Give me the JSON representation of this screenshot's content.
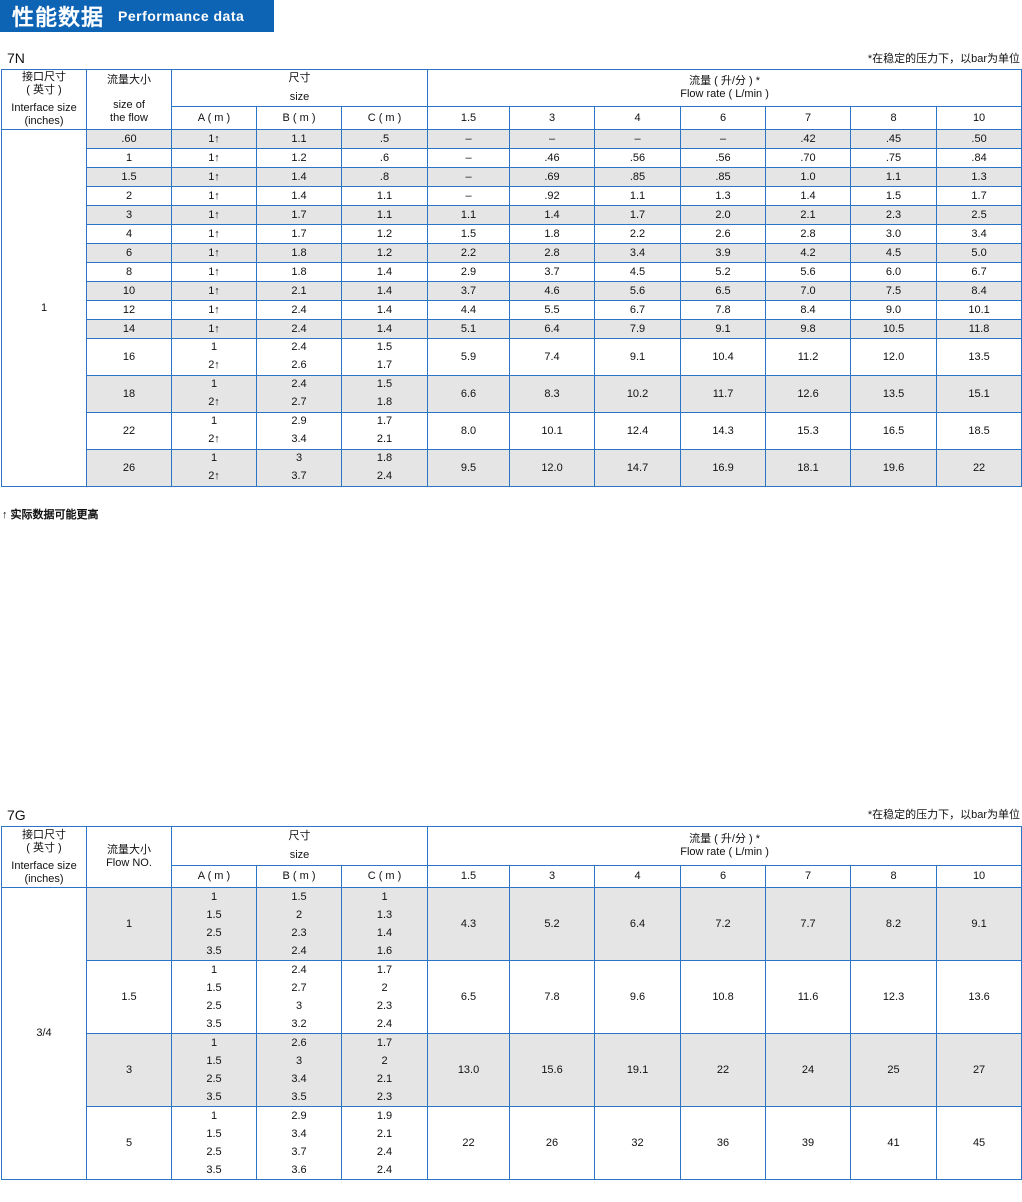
{
  "banner": {
    "title_zh": "性能数据",
    "title_en": "Performance data"
  },
  "colors": {
    "accent": "#0d64b4",
    "border": "#2c75c6",
    "stripe": "#e5e5e5"
  },
  "pressures": [
    "1.5",
    "3",
    "4",
    "6",
    "7",
    "8",
    "10"
  ],
  "t7n": {
    "model": "7N",
    "note": "*在稳定的压力下，以bar为单位",
    "headers": {
      "interface_zh": "接口尺寸",
      "interface_zh2": "( 英寸 )",
      "interface_en": "Interface size",
      "interface_en2": "(inches)",
      "flow_zh": "流量大小",
      "flow_en": "size of",
      "flow_en2": "the flow",
      "size_zh": "尺寸",
      "size_en": "size",
      "rate_zh": "流量 ( 升/分 ) *",
      "rate_en": "Flow rate ( L/min )",
      "a": "A ( m )",
      "b": "B ( m )",
      "c": "C ( m )"
    },
    "interface": "1",
    "rows": [
      {
        "flow": ".60",
        "a": [
          "1↑"
        ],
        "b": [
          "1.1"
        ],
        "c": [
          ".5"
        ],
        "rates": [
          "–",
          "–",
          "–",
          "–",
          ".42",
          ".45",
          ".50"
        ]
      },
      {
        "flow": "1",
        "a": [
          "1↑"
        ],
        "b": [
          "1.2"
        ],
        "c": [
          ".6"
        ],
        "rates": [
          "–",
          ".46",
          ".56",
          ".56",
          ".70",
          ".75",
          ".84"
        ]
      },
      {
        "flow": "1.5",
        "a": [
          "1↑"
        ],
        "b": [
          "1.4"
        ],
        "c": [
          ".8"
        ],
        "rates": [
          "–",
          ".69",
          ".85",
          ".85",
          "1.0",
          "1.1",
          "1.3"
        ]
      },
      {
        "flow": "2",
        "a": [
          "1↑"
        ],
        "b": [
          "1.4"
        ],
        "c": [
          "1.1"
        ],
        "rates": [
          "–",
          ".92",
          "1.1",
          "1.3",
          "1.4",
          "1.5",
          "1.7"
        ]
      },
      {
        "flow": "3",
        "a": [
          "1↑"
        ],
        "b": [
          "1.7"
        ],
        "c": [
          "1.1"
        ],
        "rates": [
          "1.1",
          "1.4",
          "1.7",
          "2.0",
          "2.1",
          "2.3",
          "2.5"
        ]
      },
      {
        "flow": "4",
        "a": [
          "1↑"
        ],
        "b": [
          "1.7"
        ],
        "c": [
          "1.2"
        ],
        "rates": [
          "1.5",
          "1.8",
          "2.2",
          "2.6",
          "2.8",
          "3.0",
          "3.4"
        ]
      },
      {
        "flow": "6",
        "a": [
          "1↑"
        ],
        "b": [
          "1.8"
        ],
        "c": [
          "1.2"
        ],
        "rates": [
          "2.2",
          "2.8",
          "3.4",
          "3.9",
          "4.2",
          "4.5",
          "5.0"
        ]
      },
      {
        "flow": "8",
        "a": [
          "1↑"
        ],
        "b": [
          "1.8"
        ],
        "c": [
          "1.4"
        ],
        "rates": [
          "2.9",
          "3.7",
          "4.5",
          "5.2",
          "5.6",
          "6.0",
          "6.7"
        ]
      },
      {
        "flow": "10",
        "a": [
          "1↑"
        ],
        "b": [
          "2.1"
        ],
        "c": [
          "1.4"
        ],
        "rates": [
          "3.7",
          "4.6",
          "5.6",
          "6.5",
          "7.0",
          "7.5",
          "8.4"
        ]
      },
      {
        "flow": "12",
        "a": [
          "1↑"
        ],
        "b": [
          "2.4"
        ],
        "c": [
          "1.4"
        ],
        "rates": [
          "4.4",
          "5.5",
          "6.7",
          "7.8",
          "8.4",
          "9.0",
          "10.1"
        ]
      },
      {
        "flow": "14",
        "a": [
          "1↑"
        ],
        "b": [
          "2.4"
        ],
        "c": [
          "1.4"
        ],
        "rates": [
          "5.1",
          "6.4",
          "7.9",
          "9.1",
          "9.8",
          "10.5",
          "11.8"
        ]
      },
      {
        "flow": "16",
        "a": [
          "1",
          "2↑"
        ],
        "b": [
          "2.4",
          "2.6"
        ],
        "c": [
          "1.5",
          "1.7"
        ],
        "rates": [
          "5.9",
          "7.4",
          "9.1",
          "10.4",
          "11.2",
          "12.0",
          "13.5"
        ]
      },
      {
        "flow": "18",
        "a": [
          "1",
          "2↑"
        ],
        "b": [
          "2.4",
          "2.7"
        ],
        "c": [
          "1.5",
          "1.8"
        ],
        "rates": [
          "6.6",
          "8.3",
          "10.2",
          "11.7",
          "12.6",
          "13.5",
          "15.1"
        ]
      },
      {
        "flow": "22",
        "a": [
          "1",
          "2↑"
        ],
        "b": [
          "2.9",
          "3.4"
        ],
        "c": [
          "1.7",
          "2.1"
        ],
        "rates": [
          "8.0",
          "10.1",
          "12.4",
          "14.3",
          "15.3",
          "16.5",
          "18.5"
        ]
      },
      {
        "flow": "26",
        "a": [
          "1",
          "2↑"
        ],
        "b": [
          "3",
          "3.7"
        ],
        "c": [
          "1.8",
          "2.4"
        ],
        "rates": [
          "9.5",
          "12.0",
          "14.7",
          "16.9",
          "18.1",
          "19.6",
          "22"
        ]
      }
    ],
    "footnote": "↑ 实际数据可能更高"
  },
  "t7g": {
    "model": "7G",
    "note": "*在稳定的压力下，以bar为单位",
    "headers": {
      "interface_zh": "接口尺寸",
      "interface_zh2": "( 英寸 )",
      "interface_en": "Interface size",
      "interface_en2": "(inches)",
      "flow_zh": "流量大小",
      "flow_en": "Flow NO.",
      "flow_en2": "",
      "size_zh": "尺寸",
      "size_en": "size",
      "rate_zh": "流量 ( 升/分 ) *",
      "rate_en": "Flow rate ( L/min )",
      "a": "A ( m )",
      "b": "B ( m )",
      "c": "C ( m )"
    },
    "interface": "3/4",
    "rows": [
      {
        "flow": "1",
        "a": [
          "1",
          "1.5",
          "2.5",
          "3.5"
        ],
        "b": [
          "1.5",
          "2",
          "2.3",
          "2.4"
        ],
        "c": [
          "1",
          "1.3",
          "1.4",
          "1.6"
        ],
        "rates": [
          "4.3",
          "5.2",
          "6.4",
          "7.2",
          "7.7",
          "8.2",
          "9.1"
        ]
      },
      {
        "flow": "1.5",
        "a": [
          "1",
          "1.5",
          "2.5",
          "3.5"
        ],
        "b": [
          "2.4",
          "2.7",
          "3",
          "3.2"
        ],
        "c": [
          "1.7",
          "2",
          "2.3",
          "2.4"
        ],
        "rates": [
          "6.5",
          "7.8",
          "9.6",
          "10.8",
          "11.6",
          "12.3",
          "13.6"
        ]
      },
      {
        "flow": "3",
        "a": [
          "1",
          "1.5",
          "2.5",
          "3.5"
        ],
        "b": [
          "2.6",
          "3",
          "3.4",
          "3.5"
        ],
        "c": [
          "1.7",
          "2",
          "2.1",
          "2.3"
        ],
        "rates": [
          "13.0",
          "15.6",
          "19.1",
          "22",
          "24",
          "25",
          "27"
        ]
      },
      {
        "flow": "5",
        "a": [
          "1",
          "1.5",
          "2.5",
          "3.5"
        ],
        "b": [
          "2.9",
          "3.4",
          "3.7",
          "3.6"
        ],
        "c": [
          "1.9",
          "2.1",
          "2.4",
          "2.4"
        ],
        "rates": [
          "22",
          "26",
          "32",
          "36",
          "39",
          "41",
          "45"
        ]
      }
    ]
  }
}
